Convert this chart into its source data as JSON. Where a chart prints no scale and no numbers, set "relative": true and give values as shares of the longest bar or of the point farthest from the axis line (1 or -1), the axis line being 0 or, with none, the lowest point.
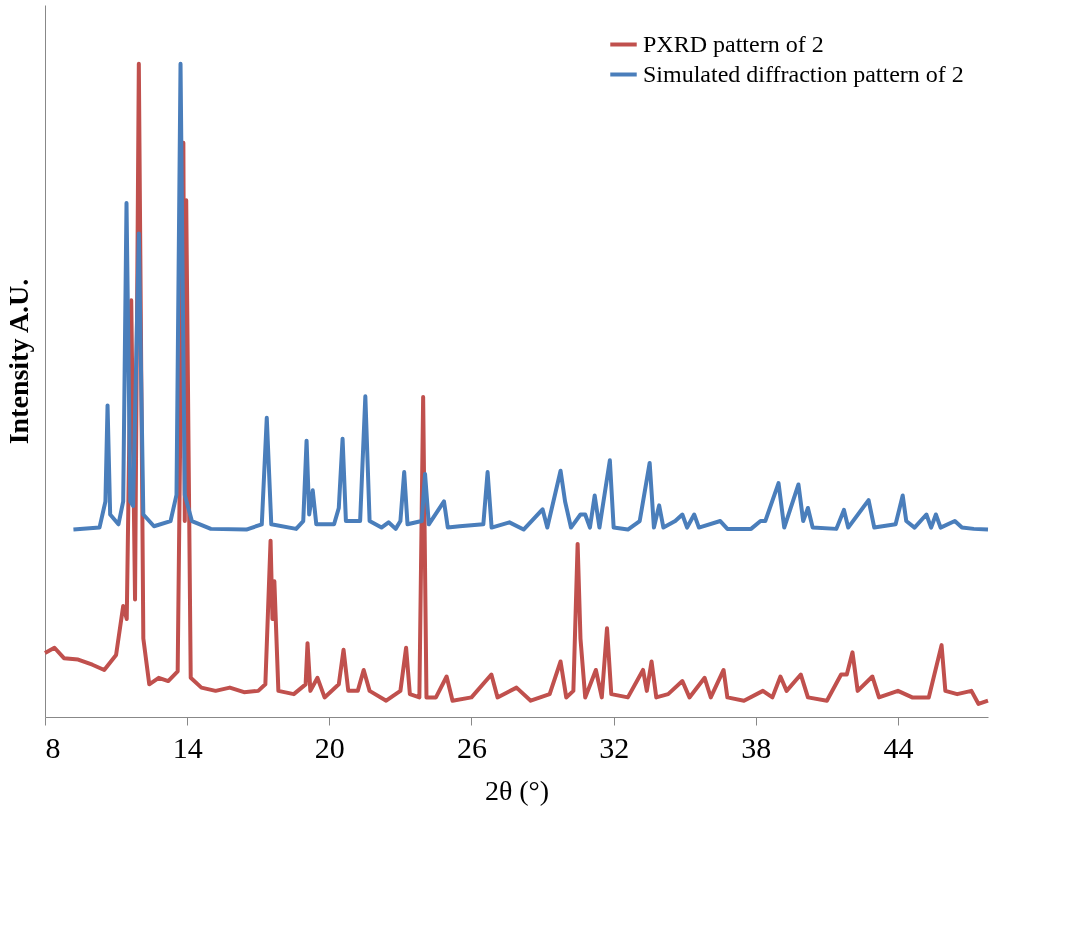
{
  "chart_data": {
    "type": "line",
    "relative": true,
    "xlabel": "2θ (°)",
    "ylabel": "Intensity A.U.",
    "xlim": [
      8,
      47.8
    ],
    "xticks": [
      8,
      14,
      20,
      26,
      32,
      38,
      44
    ],
    "legend": "top right",
    "grid": false,
    "marker": "none",
    "line_style": "solid",
    "series": [
      {
        "name": "PXRD pattern of 2",
        "color": "#c0504d",
        "x": [
          8.0,
          8.4,
          8.8,
          9.4,
          10.0,
          10.5,
          11.0,
          11.3,
          11.45,
          11.64,
          11.8,
          11.96,
          12.15,
          12.4,
          12.8,
          13.2,
          13.6,
          13.84,
          13.9,
          13.96,
          14.15,
          14.6,
          15.2,
          15.8,
          16.4,
          17.0,
          17.3,
          17.52,
          17.6,
          17.68,
          17.85,
          18.5,
          19.0,
          19.08,
          19.2,
          19.5,
          19.8,
          20.4,
          20.6,
          20.8,
          21.2,
          21.45,
          21.7,
          22.4,
          23.0,
          23.24,
          23.4,
          23.8,
          23.96,
          24.1,
          24.5,
          24.95,
          25.2,
          26.0,
          26.84,
          27.1,
          27.9,
          28.5,
          29.3,
          29.76,
          30.0,
          30.3,
          30.48,
          30.6,
          30.8,
          31.25,
          31.5,
          31.72,
          31.9,
          32.6,
          33.24,
          33.4,
          33.6,
          33.8,
          34.3,
          34.9,
          35.2,
          35.84,
          36.1,
          36.64,
          36.8,
          37.5,
          38.3,
          38.7,
          39.04,
          39.3,
          39.9,
          40.2,
          41.0,
          41.6,
          41.84,
          42.08,
          42.3,
          42.92,
          43.2,
          44.0,
          44.6,
          45.3,
          45.84,
          46.0,
          46.5,
          47.1,
          47.4,
          47.8
        ],
        "values": [
          0.098,
          0.106,
          0.09,
          0.088,
          0.08,
          0.072,
          0.095,
          0.17,
          0.15,
          0.638,
          0.18,
          1.0,
          0.12,
          0.05,
          0.06,
          0.055,
          0.07,
          0.879,
          0.3,
          0.791,
          0.06,
          0.045,
          0.04,
          0.045,
          0.038,
          0.04,
          0.05,
          0.27,
          0.15,
          0.208,
          0.04,
          0.035,
          0.05,
          0.113,
          0.04,
          0.06,
          0.03,
          0.05,
          0.103,
          0.04,
          0.04,
          0.072,
          0.04,
          0.025,
          0.04,
          0.106,
          0.035,
          0.03,
          0.49,
          0.03,
          0.03,
          0.062,
          0.025,
          0.03,
          0.065,
          0.03,
          0.045,
          0.025,
          0.035,
          0.085,
          0.03,
          0.04,
          0.265,
          0.12,
          0.03,
          0.072,
          0.03,
          0.136,
          0.035,
          0.03,
          0.072,
          0.04,
          0.085,
          0.03,
          0.035,
          0.055,
          0.03,
          0.06,
          0.03,
          0.072,
          0.03,
          0.025,
          0.04,
          0.03,
          0.062,
          0.04,
          0.065,
          0.03,
          0.025,
          0.065,
          0.065,
          0.099,
          0.04,
          0.062,
          0.03,
          0.04,
          0.03,
          0.03,
          0.11,
          0.04,
          0.035,
          0.04,
          0.02,
          0.025
        ]
      },
      {
        "name": "Simulated diffraction pattern of 2",
        "color": "#4a7ebb",
        "x": [
          9.2,
          10.3,
          10.55,
          10.64,
          10.75,
          11.1,
          11.3,
          11.44,
          11.6,
          11.72,
          11.96,
          12.15,
          12.6,
          13.3,
          13.55,
          13.72,
          13.9,
          14.2,
          15.0,
          16.5,
          17.15,
          17.36,
          17.55,
          18.6,
          18.9,
          19.04,
          19.15,
          19.3,
          19.45,
          20.2,
          20.4,
          20.56,
          20.7,
          21.3,
          21.52,
          21.7,
          22.2,
          22.5,
          22.8,
          23.0,
          23.16,
          23.3,
          23.9,
          24.04,
          24.2,
          24.84,
          25.0,
          25.5,
          26.5,
          26.68,
          26.85,
          27.6,
          28.2,
          29.0,
          29.2,
          29.76,
          29.95,
          30.2,
          30.6,
          30.8,
          31.0,
          31.2,
          31.4,
          31.84,
          32.0,
          32.6,
          33.1,
          33.52,
          33.7,
          33.92,
          34.1,
          34.6,
          34.9,
          35.1,
          35.4,
          35.6,
          36.5,
          36.8,
          37.8,
          38.2,
          38.4,
          38.96,
          39.2,
          39.8,
          40.0,
          40.2,
          40.4,
          41.4,
          41.72,
          41.9,
          42.76,
          43.0,
          43.9,
          44.2,
          44.35,
          44.7,
          45.2,
          45.4,
          45.6,
          45.8,
          46.4,
          46.7,
          47.2,
          47.8
        ],
        "values": [
          0.287,
          0.29,
          0.33,
          0.477,
          0.31,
          0.295,
          0.33,
          0.787,
          0.33,
          0.323,
          0.74,
          0.31,
          0.292,
          0.3,
          0.34,
          1.0,
          0.34,
          0.3,
          0.288,
          0.287,
          0.295,
          0.458,
          0.295,
          0.288,
          0.3,
          0.423,
          0.31,
          0.347,
          0.295,
          0.295,
          0.32,
          0.426,
          0.3,
          0.3,
          0.491,
          0.3,
          0.29,
          0.298,
          0.288,
          0.3,
          0.375,
          0.295,
          0.3,
          0.372,
          0.295,
          0.33,
          0.29,
          0.292,
          0.295,
          0.375,
          0.29,
          0.298,
          0.287,
          0.318,
          0.29,
          0.377,
          0.33,
          0.29,
          0.31,
          0.31,
          0.29,
          0.339,
          0.29,
          0.393,
          0.29,
          0.287,
          0.3,
          0.389,
          0.29,
          0.324,
          0.29,
          0.3,
          0.31,
          0.29,
          0.31,
          0.29,
          0.3,
          0.288,
          0.288,
          0.3,
          0.3,
          0.358,
          0.29,
          0.356,
          0.3,
          0.32,
          0.29,
          0.288,
          0.317,
          0.29,
          0.332,
          0.29,
          0.295,
          0.339,
          0.3,
          0.29,
          0.31,
          0.29,
          0.31,
          0.29,
          0.3,
          0.29,
          0.288,
          0.287
        ]
      }
    ]
  }
}
